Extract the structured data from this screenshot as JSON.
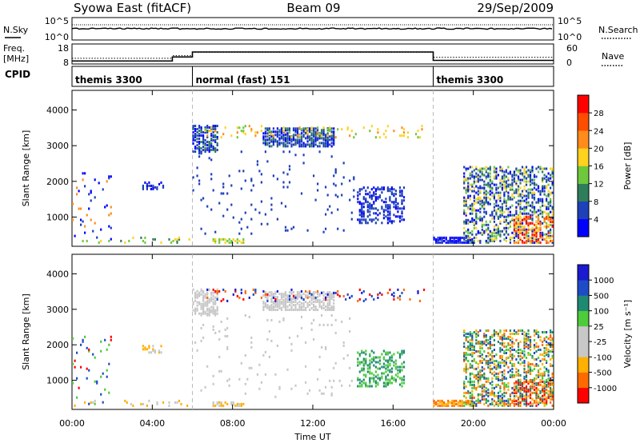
{
  "header": {
    "title_left": "Syowa East (fitACF)",
    "title_center": "Beam 09",
    "title_right": "29/Sep/2009"
  },
  "top_panels": {
    "nsky_label": "N.Sky",
    "nsky_ticks": [
      "10^5",
      "10^0"
    ],
    "nsearch_label": "N.Search",
    "nsearch_ticks": [
      "10^5",
      "10^0"
    ],
    "freq_label_1": "Freq.",
    "freq_label_2": "[MHz]",
    "freq_ticks": [
      "18",
      "8"
    ],
    "nave_label": "Nave",
    "nave_ticks": [
      "60",
      "0"
    ],
    "cpid_label": "CPID",
    "freq_series": [
      {
        "x": 0.0,
        "y": 9.5
      },
      {
        "x": 5.0,
        "y": 9.5
      },
      {
        "x": 5.0,
        "y": 11.5
      },
      {
        "x": 6.0,
        "y": 11.5
      },
      {
        "x": 6.0,
        "y": 14.0
      },
      {
        "x": 18.0,
        "y": 14.0
      },
      {
        "x": 18.0,
        "y": 9.8
      },
      {
        "x": 24.0,
        "y": 9.8
      }
    ],
    "nave_series": [
      {
        "x": 0.0,
        "y": 17
      },
      {
        "x": 5.0,
        "y": 17
      },
      {
        "x": 5.0,
        "y": 25
      },
      {
        "x": 6.0,
        "y": 25
      },
      {
        "x": 6.0,
        "y": 35
      },
      {
        "x": 18.0,
        "y": 35
      },
      {
        "x": 18.0,
        "y": 20
      },
      {
        "x": 24.0,
        "y": 20
      }
    ]
  },
  "modes": [
    {
      "label": "themis 3300",
      "start": 0,
      "end": 6
    },
    {
      "label": "normal (fast) 151",
      "start": 6,
      "end": 18
    },
    {
      "label": "themis 3300",
      "start": 18,
      "end": 24
    }
  ],
  "chart_data": [
    {
      "type": "heatmap",
      "name": "power",
      "xlabel": "Time UT",
      "ylabel": "Slant Range [km]",
      "xlim": [
        0,
        24
      ],
      "ylim": [
        180,
        4550
      ],
      "x_ticks": [
        {
          "v": 0,
          "label": "00:00"
        },
        {
          "v": 4,
          "label": "04:00"
        },
        {
          "v": 8,
          "label": "08:00"
        },
        {
          "v": 12,
          "label": "12:00"
        },
        {
          "v": 16,
          "label": "16:00"
        },
        {
          "v": 20,
          "label": "20:00"
        },
        {
          "v": 24,
          "label": "00:00"
        }
      ],
      "y_ticks": [
        1000,
        2000,
        3000,
        4000
      ],
      "colorbar": {
        "label": "Power [dB]",
        "ticks": [
          "4",
          "8",
          "12",
          "16",
          "20",
          "24",
          "28"
        ],
        "colors": [
          "#0000ff",
          "#1e40b8",
          "#2e7d5b",
          "#6fc83c",
          "#ffd21e",
          "#ff8c1a",
          "#ff4d00",
          "#ff0000"
        ]
      },
      "clusters": [
        {
          "t0": 6.0,
          "t1": 7.2,
          "r0": 2800,
          "r1": 3550,
          "c": [
            0,
            1,
            1,
            2
          ],
          "d": 0.55
        },
        {
          "t0": 9.5,
          "t1": 13.0,
          "r0": 2950,
          "r1": 3450,
          "c": [
            1,
            1,
            0,
            2
          ],
          "d": 0.6
        },
        {
          "t0": 6.5,
          "t1": 17.5,
          "r0": 3200,
          "r1": 3550,
          "c": [
            3,
            4,
            4,
            5
          ],
          "d": 0.1
        },
        {
          "t0": 14.2,
          "t1": 16.6,
          "r0": 800,
          "r1": 1800,
          "c": [
            0,
            1,
            1
          ],
          "d": 0.35
        },
        {
          "t0": 18.0,
          "t1": 20.0,
          "r0": 250,
          "r1": 420,
          "c": [
            0,
            1,
            0
          ],
          "d": 0.7
        },
        {
          "t0": 19.5,
          "t1": 24.0,
          "r0": 250,
          "r1": 2400,
          "c": [
            0,
            1,
            1,
            2,
            3,
            4
          ],
          "d": 0.38
        },
        {
          "t0": 22.0,
          "t1": 24.0,
          "r0": 250,
          "r1": 1000,
          "c": [
            5,
            6,
            7,
            4
          ],
          "d": 0.4
        },
        {
          "t0": 0.0,
          "t1": 6.0,
          "r0": 250,
          "r1": 420,
          "c": [
            2,
            3,
            4
          ],
          "d": 0.12
        },
        {
          "t0": 7.0,
          "t1": 8.5,
          "r0": 250,
          "r1": 380,
          "c": [
            4,
            3
          ],
          "d": 0.6
        },
        {
          "t0": 0.0,
          "t1": 2.0,
          "r0": 300,
          "r1": 2200,
          "c": [
            0,
            1,
            5
          ],
          "d": 0.06
        },
        {
          "t0": 3.5,
          "t1": 4.5,
          "r0": 1750,
          "r1": 1950,
          "c": [
            0,
            1
          ],
          "d": 0.4
        },
        {
          "t0": 6.0,
          "t1": 14.0,
          "r0": 500,
          "r1": 2800,
          "c": [
            1
          ],
          "d": 0.03
        }
      ]
    },
    {
      "type": "heatmap",
      "name": "velocity",
      "xlabel": "Time UT",
      "ylabel": "Slant Range [km]",
      "xlim": [
        0,
        24
      ],
      "ylim": [
        180,
        4550
      ],
      "x_ticks": [
        {
          "v": 0,
          "label": "00:00"
        },
        {
          "v": 4,
          "label": "04:00"
        },
        {
          "v": 8,
          "label": "08:00"
        },
        {
          "v": 12,
          "label": "12:00"
        },
        {
          "v": 16,
          "label": "16:00"
        },
        {
          "v": 20,
          "label": "20:00"
        },
        {
          "v": 24,
          "label": "00:00"
        }
      ],
      "y_ticks": [
        1000,
        2000,
        3000,
        4000
      ],
      "colorbar": {
        "label": "Velocity [m s⁻¹]",
        "ticks": [
          "-1000",
          "-500",
          "-100",
          "-25",
          "25",
          "100",
          "500",
          "1000"
        ],
        "colors": [
          "#ff0000",
          "#ff6a00",
          "#ffb000",
          "#c8c8c8",
          "#c8c8c8",
          "#4ecb3a",
          "#1f8a72",
          "#1e4cc8",
          "#1a1ad0"
        ]
      },
      "clusters": [
        {
          "t0": 6.0,
          "t1": 7.2,
          "r0": 2800,
          "r1": 3550,
          "c": [
            3,
            3,
            4
          ],
          "d": 0.55
        },
        {
          "t0": 9.5,
          "t1": 13.0,
          "r0": 2950,
          "r1": 3450,
          "c": [
            3,
            4,
            3
          ],
          "d": 0.6
        },
        {
          "t0": 6.5,
          "t1": 17.5,
          "r0": 3200,
          "r1": 3550,
          "c": [
            0,
            7,
            8,
            1
          ],
          "d": 0.1
        },
        {
          "t0": 14.2,
          "t1": 16.6,
          "r0": 800,
          "r1": 1800,
          "c": [
            5,
            6
          ],
          "d": 0.35
        },
        {
          "t0": 18.0,
          "t1": 20.0,
          "r0": 250,
          "r1": 420,
          "c": [
            2,
            1
          ],
          "d": 0.7
        },
        {
          "t0": 19.5,
          "t1": 24.0,
          "r0": 250,
          "r1": 2400,
          "c": [
            6,
            7,
            5,
            2,
            1
          ],
          "d": 0.38
        },
        {
          "t0": 22.0,
          "t1": 24.0,
          "r0": 250,
          "r1": 1000,
          "c": [
            0,
            1,
            2,
            6
          ],
          "d": 0.4
        },
        {
          "t0": 0.0,
          "t1": 6.0,
          "r0": 250,
          "r1": 420,
          "c": [
            2,
            3
          ],
          "d": 0.12
        },
        {
          "t0": 7.0,
          "t1": 8.5,
          "r0": 250,
          "r1": 380,
          "c": [
            2,
            3
          ],
          "d": 0.6
        },
        {
          "t0": 0.0,
          "t1": 2.0,
          "r0": 300,
          "r1": 2200,
          "c": [
            7,
            5,
            0
          ],
          "d": 0.06
        },
        {
          "t0": 3.5,
          "t1": 4.5,
          "r0": 1750,
          "r1": 1950,
          "c": [
            3,
            2
          ],
          "d": 0.4
        },
        {
          "t0": 6.0,
          "t1": 14.0,
          "r0": 500,
          "r1": 2800,
          "c": [
            3
          ],
          "d": 0.03
        }
      ]
    }
  ]
}
